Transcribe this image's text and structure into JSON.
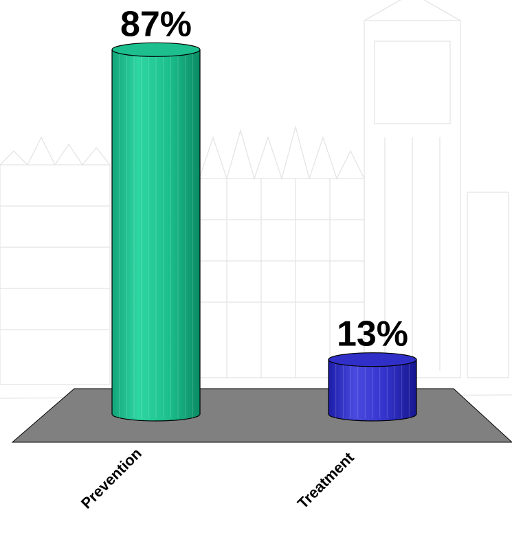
{
  "chart_data": {
    "type": "bar",
    "style": "3d-cylinder",
    "categories": [
      "Prevention",
      "Treatment"
    ],
    "values": [
      87,
      13
    ],
    "data_labels": [
      "87%",
      "13%"
    ],
    "series_colors": [
      "#1dbf8e",
      "#3030c8"
    ],
    "floor_color": "#808080",
    "title": "",
    "xlabel": "",
    "ylabel": "",
    "ylim": [
      0,
      100
    ],
    "grid": false,
    "legend": "none"
  },
  "background": {
    "description_icon": "city-sketch-watermark"
  }
}
